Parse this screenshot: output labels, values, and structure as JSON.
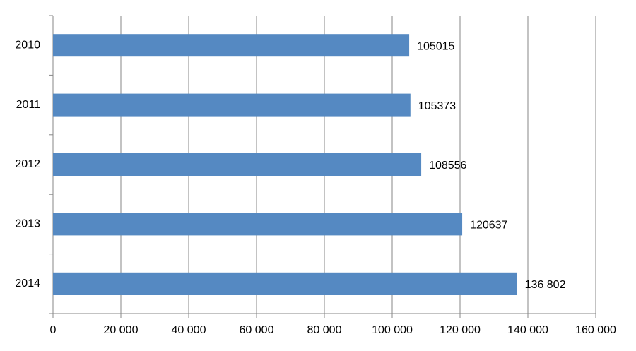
{
  "chart_data": {
    "type": "hbar",
    "categories": [
      "2010",
      "2011",
      "2012",
      "2013",
      "2014"
    ],
    "values": [
      105015,
      105373,
      108556,
      120637,
      136802
    ],
    "value_labels": [
      "105015",
      "105373",
      "108556",
      "120637",
      "136 802"
    ],
    "color": "#5589c2",
    "xlim": [
      0,
      160000
    ],
    "xticks": [
      0,
      {
        "value": 20000,
        "label": "20 000"
      },
      {
        "value": 40000,
        "label": "40 000"
      },
      {
        "value": 60000,
        "label": "60 000"
      },
      {
        "value": 80000,
        "label": "80 000"
      },
      {
        "value": 100000,
        "label": "100 000"
      },
      {
        "value": 120000,
        "label": "120 000"
      },
      {
        "value": 140000,
        "label": "140 000"
      },
      {
        "value": 160000,
        "label": "160 000"
      }
    ],
    "grid": true
  }
}
